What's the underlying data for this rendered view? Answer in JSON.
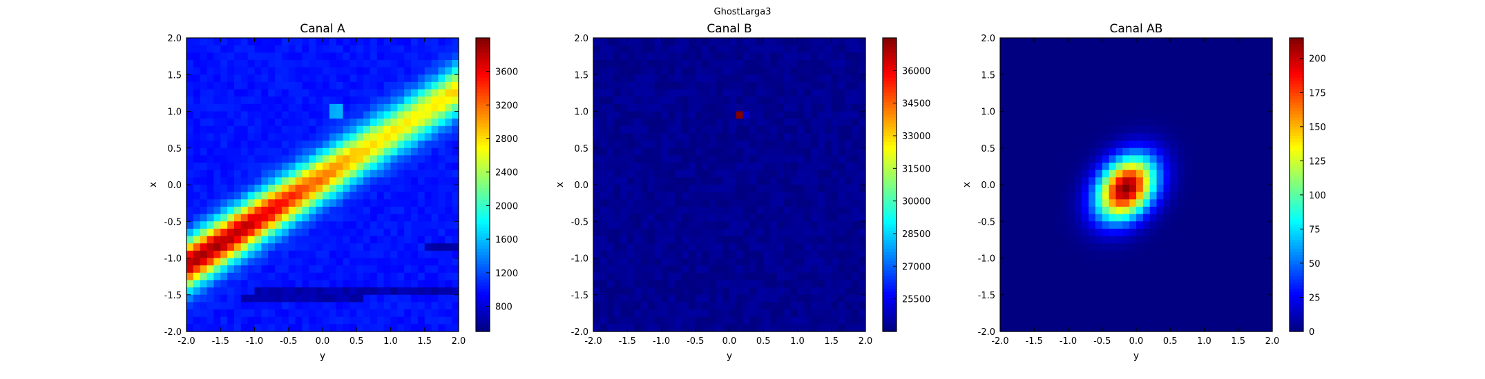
{
  "figure": {
    "suptitle": "GhostLarga3"
  },
  "chart_data": [
    {
      "type": "heatmap",
      "title": "Canal A",
      "xlabel": "y",
      "ylabel": "x",
      "xlim": [
        -2.0,
        2.0
      ],
      "ylim": [
        -2.0,
        2.0
      ],
      "xticks": [
        "-2.0",
        "-1.5",
        "-1.0",
        "-0.5",
        "0.0",
        "0.5",
        "1.0",
        "1.5",
        "2.0"
      ],
      "yticks": [
        "2.0",
        "1.5",
        "1.0",
        "0.5",
        "0.0",
        "-0.5",
        "-1.0",
        "-1.5",
        "-2.0"
      ],
      "grid_size": 40,
      "colormap": "jet",
      "colorbar": {
        "min": 500,
        "max": 4000,
        "ticks": [
          "800",
          "1200",
          "1600",
          "2000",
          "2400",
          "2800",
          "3200",
          "3600"
        ]
      },
      "pattern": "diagonal band peaking near (y=-1.7, x=-1.3) and (y=1.3, x=0.7); background ~1000"
    },
    {
      "type": "heatmap",
      "title": "Canal B",
      "xlabel": "y",
      "ylabel": "x",
      "xlim": [
        -2.0,
        2.0
      ],
      "ylim": [
        -2.0,
        2.0
      ],
      "xticks": [
        "-2.0",
        "-1.5",
        "-1.0",
        "-0.5",
        "0.0",
        "0.5",
        "1.0",
        "1.5",
        "2.0"
      ],
      "yticks": [
        "2.0",
        "1.5",
        "1.0",
        "0.5",
        "0.0",
        "-0.5",
        "-1.0",
        "-1.5",
        "-2.0"
      ],
      "grid_size": 40,
      "colormap": "jet",
      "colorbar": {
        "min": 24000,
        "max": 37500,
        "ticks": [
          "36000",
          "34500",
          "33000",
          "31500",
          "30000",
          "28500",
          "27000",
          "25500"
        ]
      },
      "pattern": "uniform ~24000 with a single hot cell ~37500 at (y=0.2, x=1.0)"
    },
    {
      "type": "heatmap",
      "title": "Canal AB",
      "xlabel": "y",
      "ylabel": "x",
      "xlim": [
        -2.0,
        2.0
      ],
      "ylim": [
        -2.0,
        2.0
      ],
      "xticks": [
        "-2.0",
        "-1.5",
        "-1.0",
        "-0.5",
        "0.0",
        "0.5",
        "1.0",
        "1.5",
        "2.0"
      ],
      "yticks": [
        "2.0",
        "1.5",
        "1.0",
        "0.5",
        "0.0",
        "-0.5",
        "-1.0",
        "-1.5",
        "-2.0"
      ],
      "grid_size": 40,
      "colormap": "jet",
      "colorbar": {
        "min": 0,
        "max": 215,
        "ticks": [
          "200",
          "175",
          "150",
          "125",
          "100",
          "75",
          "50",
          "25",
          "0"
        ]
      },
      "pattern": "single tilted gaussian blob peaking ~215 at (y=-0.15, x=-0.05)"
    }
  ]
}
